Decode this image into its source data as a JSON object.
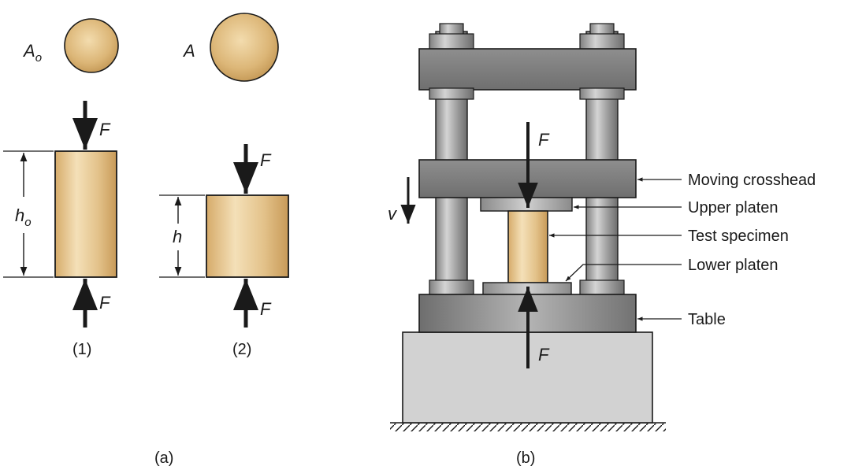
{
  "figure_a": {
    "label": "(a)",
    "area_initial": "A",
    "area_initial_sub": "o",
    "area_final": "A",
    "height_initial": "h",
    "height_initial_sub": "o",
    "height_final": "h",
    "force": "F",
    "state_1": "(1)",
    "state_2": "(2)"
  },
  "figure_b": {
    "label": "(b)",
    "force": "F",
    "velocity": "v",
    "callouts": {
      "moving_crosshead": "Moving crosshead",
      "upper_platen": "Upper platen",
      "test_specimen": "Test specimen",
      "lower_platen": "Lower platen",
      "table": "Table"
    }
  },
  "colors": {
    "specimen": "#dcb77a",
    "steel_dark": "#7d7d7d",
    "steel_mid": "#a6a6a6",
    "base": "#d2d2d2"
  }
}
